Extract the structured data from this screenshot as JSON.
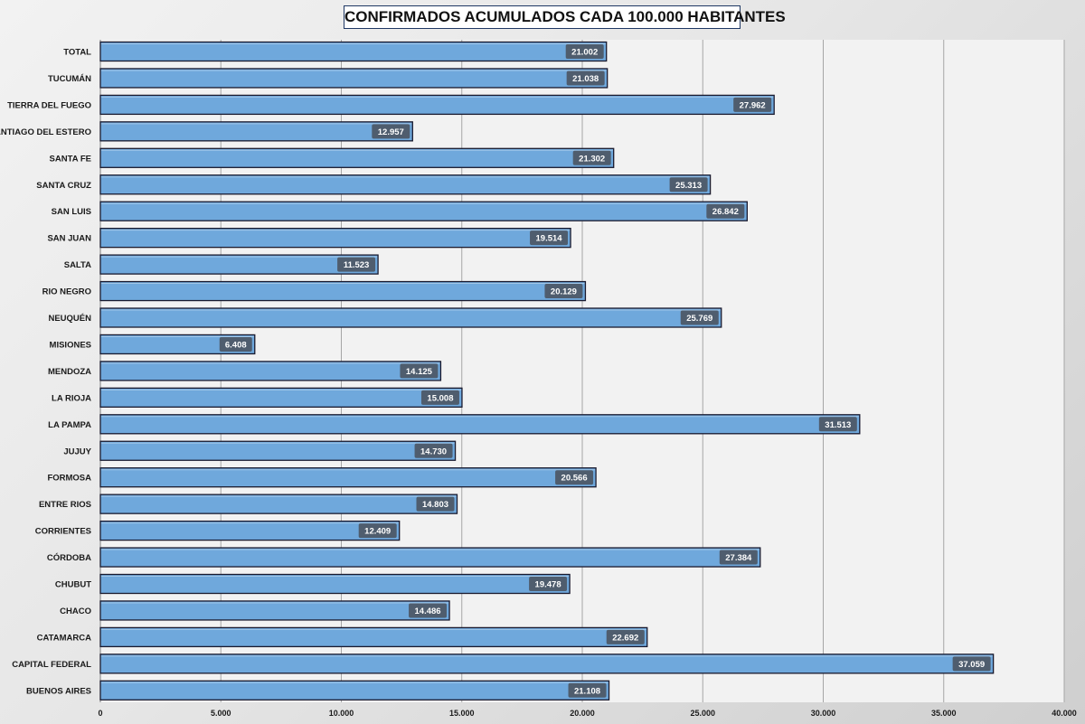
{
  "chart_data": {
    "type": "bar",
    "orientation": "horizontal",
    "title": "CONFIRMADOS ACUMULADOS CADA 100.000 HABITANTES",
    "categories": [
      "TOTAL",
      "TUCUMÁN",
      "TIERRA  DEL FUEGO",
      "SANTIAGO  DEL ESTERO",
      "SANTA FE",
      "SANTA CRUZ",
      "SAN LUIS",
      "SAN JUAN",
      "SALTA",
      "RIO NEGRO",
      "NEUQUÉN",
      "MISIONES",
      "MENDOZA",
      "LA RIOJA",
      "LA PAMPA",
      "JUJUY",
      "FORMOSA",
      "ENTRE RIOS",
      "CORRIENTES",
      "CÓRDOBA",
      "CHUBUT",
      "CHACO",
      "CATAMARCA",
      "CAPITAL  FEDERAL",
      "BUENOS  AIRES"
    ],
    "values": [
      21002,
      21038,
      27962,
      12957,
      21302,
      25313,
      26842,
      19514,
      11523,
      20129,
      25769,
      6408,
      14125,
      15008,
      31513,
      14730,
      20566,
      14803,
      12409,
      27384,
      19478,
      14486,
      22692,
      37059,
      21108
    ],
    "value_labels": [
      "21.002",
      "21.038",
      "27.962",
      "12.957",
      "21.302",
      "25.313",
      "26.842",
      "19.514",
      "11.523",
      "20.129",
      "25.769",
      "6.408",
      "14.125",
      "15.008",
      "31.513",
      "14.730",
      "20.566",
      "14.803",
      "12.409",
      "27.384",
      "19.478",
      "14.486",
      "22.692",
      "37.059",
      "21.108"
    ],
    "xlim": [
      0,
      40000
    ],
    "xticks": [
      0,
      5000,
      10000,
      15000,
      20000,
      25000,
      30000,
      35000,
      40000
    ],
    "xtick_labels": [
      "0",
      "5.000",
      "10.000",
      "15.000",
      "20.000",
      "25.000",
      "30.000",
      "35.000",
      "40.000"
    ],
    "grid": "vertical",
    "legend": "none",
    "colors": {
      "bar_fill": "#6fa8dc",
      "bar_stroke": "#1a1a2e",
      "data_label_bg": "#4f5d6e",
      "plot_bg": "#f2f2f2",
      "grid": "#a6a6a6"
    }
  }
}
